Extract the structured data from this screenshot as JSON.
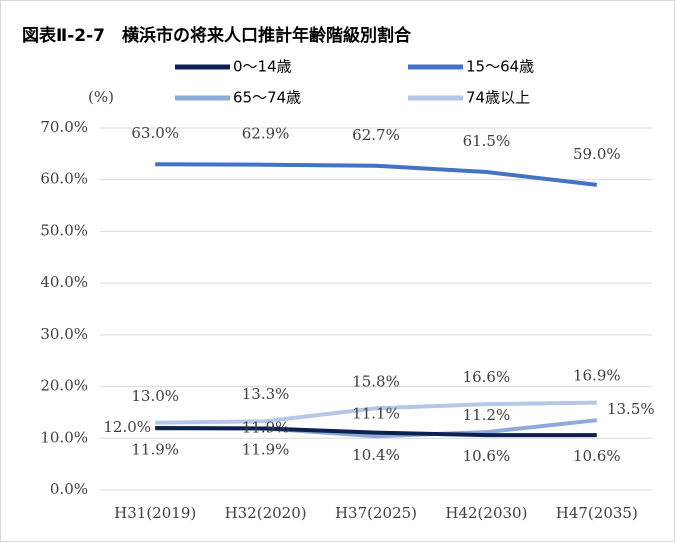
{
  "chart_data": {
    "type": "line",
    "title": "図表Ⅱ-2-7　横浜市の将来人口推計年齢階級別割合",
    "ylabel": "(%)",
    "categories": [
      "H31(2019)",
      "H32(2020)",
      "H37(2025)",
      "H42(2030)",
      "H47(2035)"
    ],
    "series": [
      {
        "name": "0〜14歳",
        "color": "#0c2150",
        "values": [
          12.0,
          11.9,
          11.1,
          10.6,
          10.6
        ],
        "value_labels": [
          "12.0%",
          "11.9%",
          "11.1%",
          "10.6%",
          "10.6%"
        ]
      },
      {
        "name": "15〜64歳",
        "color": "#4472c4",
        "values": [
          63.0,
          62.9,
          62.7,
          61.5,
          59.0
        ],
        "value_labels": [
          "63.0%",
          "62.9%",
          "62.7%",
          "61.5%",
          "59.0%"
        ]
      },
      {
        "name": "65〜74歳",
        "color": "#8eaadb",
        "values": [
          11.9,
          11.9,
          10.4,
          11.2,
          13.5
        ],
        "value_labels": [
          "11.9%",
          "11.9%",
          "10.4%",
          "11.2%",
          "13.5%"
        ]
      },
      {
        "name": "74歳以上",
        "color": "#b4c7e7",
        "values": [
          13.0,
          13.3,
          15.8,
          16.6,
          16.9
        ],
        "value_labels": [
          "13.0%",
          "13.3%",
          "15.8%",
          "16.6%",
          "16.9%"
        ]
      }
    ],
    "ylim": [
      0,
      70
    ],
    "yticks": [
      {
        "value": 0,
        "label": "0.0%"
      },
      {
        "value": 10,
        "label": "10.0%"
      },
      {
        "value": 20,
        "label": "20.0%"
      },
      {
        "value": 30,
        "label": "30.0%"
      },
      {
        "value": 40,
        "label": "40.0%"
      },
      {
        "value": 50,
        "label": "50.0%"
      },
      {
        "value": 60,
        "label": "60.0%"
      },
      {
        "value": 70,
        "label": "70.0%"
      }
    ],
    "grid": true
  }
}
